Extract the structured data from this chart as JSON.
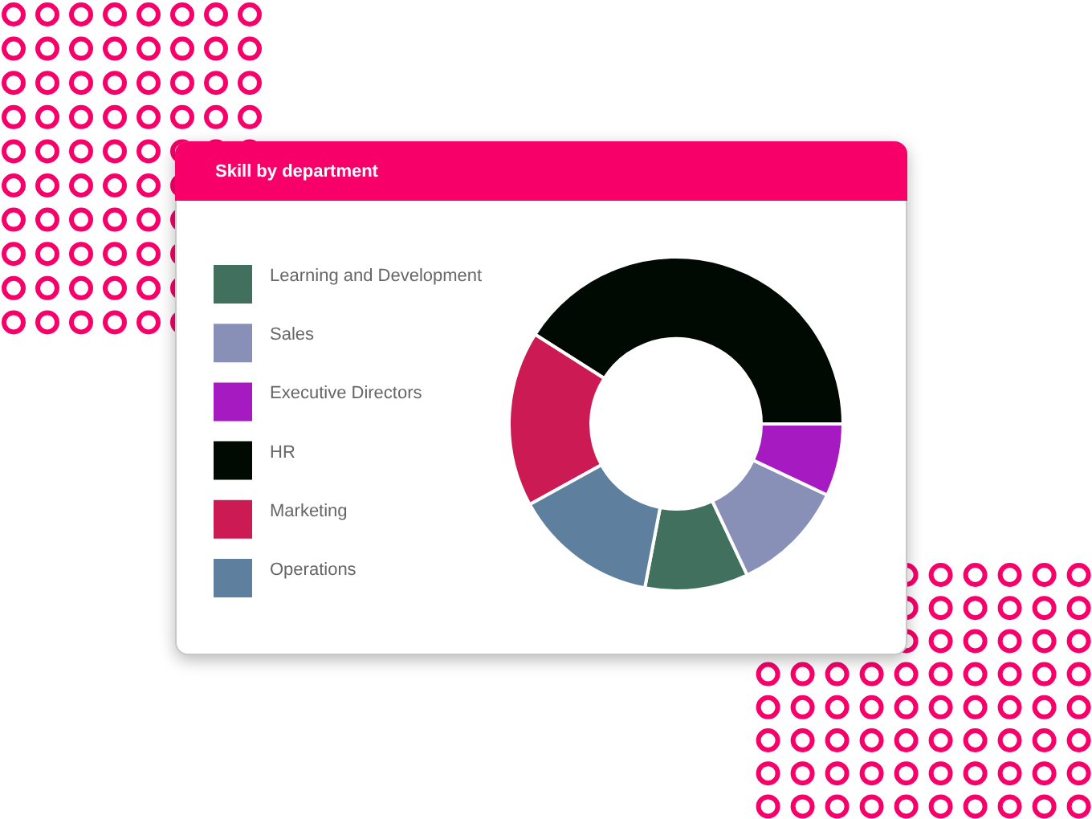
{
  "chart_data": {
    "type": "donut",
    "title": "Skill by department",
    "categories": [
      "Learning and Development",
      "Sales",
      "Executive Directors",
      "HR",
      "Marketing",
      "Operations"
    ],
    "values": [
      10,
      11,
      7,
      41,
      17,
      14
    ],
    "colors": [
      "#41705f",
      "#8990b8",
      "#a51bc1",
      "#010a02",
      "#cc1a54",
      "#5e809e"
    ],
    "legend": "left"
  }
}
